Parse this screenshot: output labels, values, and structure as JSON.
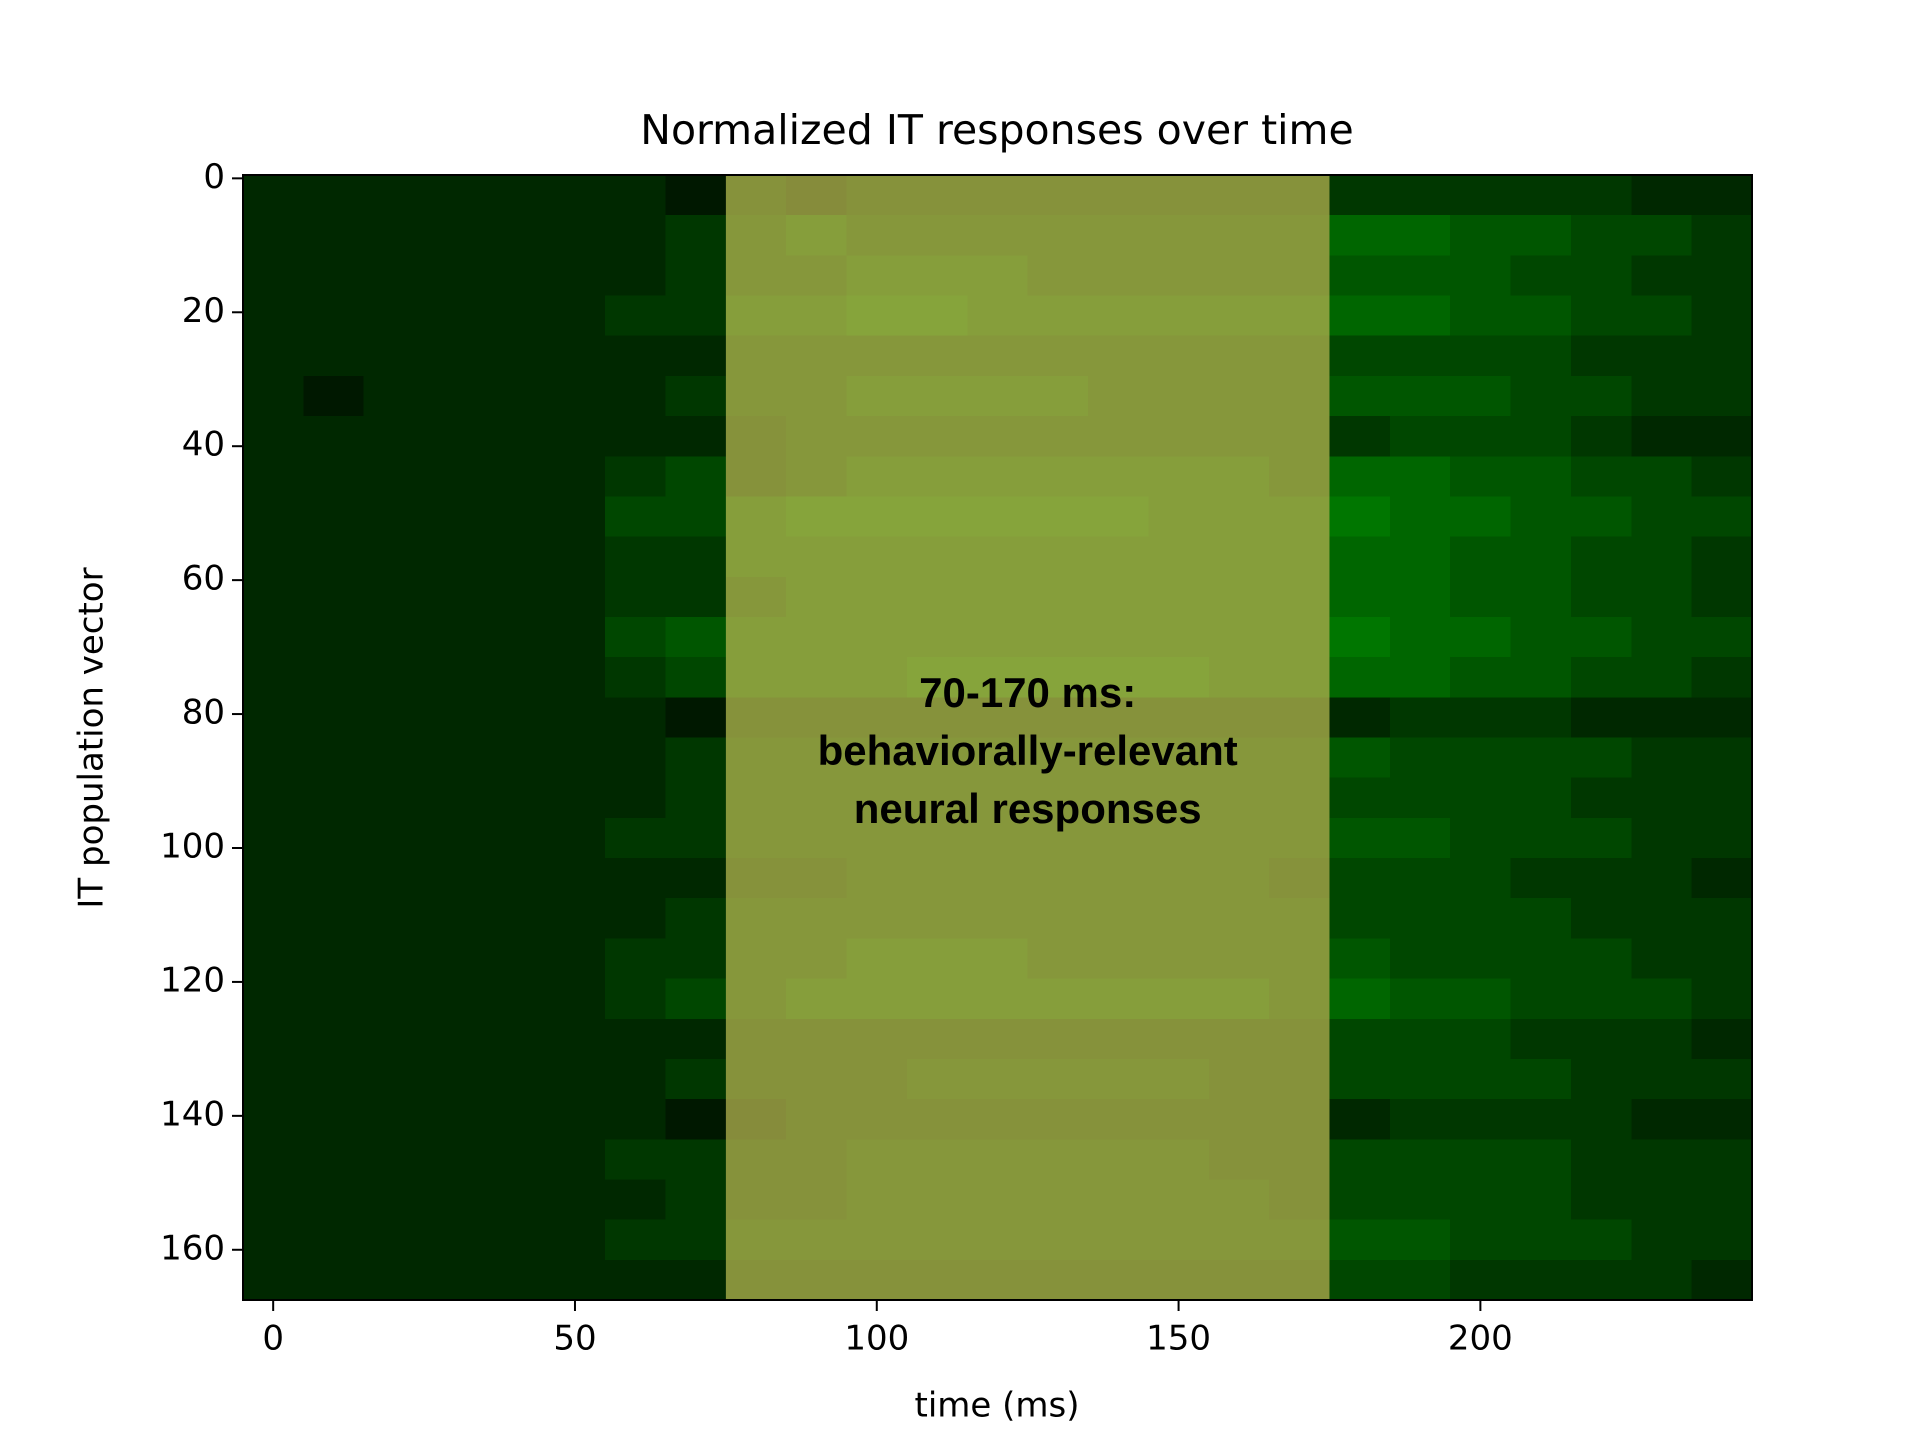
{
  "chart_data": {
    "type": "heatmap",
    "title": "Normalized IT responses over time",
    "xlabel": "time (ms)",
    "ylabel": "IT population vector",
    "x": [
      0,
      10,
      20,
      30,
      40,
      50,
      60,
      70,
      80,
      90,
      100,
      110,
      120,
      130,
      140,
      150,
      160,
      170,
      180,
      190,
      200,
      210,
      220,
      230,
      240
    ],
    "y": [
      2.5,
      8.5,
      14.5,
      20.5,
      26.5,
      32.5,
      38.5,
      44.5,
      50.5,
      56.5,
      62.5,
      68.5,
      74.5,
      80.5,
      86.5,
      92.5,
      98.5,
      104.5,
      110.5,
      116.5,
      122.5,
      128.5,
      134.5,
      140.5,
      146.5,
      152.5,
      158.5,
      164.5
    ],
    "values": [
      [
        0.1,
        0.1,
        0.1,
        0.1,
        0.1,
        0.1,
        0.1,
        0.0,
        0.3,
        0.2,
        0.3,
        0.3,
        0.3,
        0.3,
        0.3,
        0.3,
        0.3,
        0.3,
        0.2,
        0.2,
        0.2,
        0.2,
        0.2,
        0.1,
        0.1
      ],
      [
        0.1,
        0.1,
        0.1,
        0.1,
        0.1,
        0.1,
        0.1,
        0.2,
        0.4,
        0.5,
        0.4,
        0.4,
        0.4,
        0.4,
        0.4,
        0.4,
        0.4,
        0.4,
        0.5,
        0.5,
        0.4,
        0.4,
        0.3,
        0.3,
        0.2
      ],
      [
        0.1,
        0.1,
        0.1,
        0.1,
        0.1,
        0.1,
        0.1,
        0.2,
        0.4,
        0.4,
        0.5,
        0.5,
        0.5,
        0.4,
        0.4,
        0.4,
        0.4,
        0.4,
        0.4,
        0.4,
        0.4,
        0.3,
        0.3,
        0.2,
        0.2
      ],
      [
        0.1,
        0.1,
        0.1,
        0.1,
        0.1,
        0.1,
        0.2,
        0.2,
        0.5,
        0.5,
        0.6,
        0.6,
        0.5,
        0.5,
        0.5,
        0.5,
        0.5,
        0.5,
        0.5,
        0.5,
        0.4,
        0.4,
        0.3,
        0.3,
        0.2
      ],
      [
        0.1,
        0.1,
        0.1,
        0.1,
        0.1,
        0.1,
        0.1,
        0.1,
        0.4,
        0.4,
        0.4,
        0.4,
        0.4,
        0.4,
        0.4,
        0.4,
        0.4,
        0.4,
        0.3,
        0.3,
        0.3,
        0.3,
        0.2,
        0.2,
        0.2
      ],
      [
        0.1,
        0.0,
        0.1,
        0.1,
        0.1,
        0.1,
        0.1,
        0.2,
        0.4,
        0.4,
        0.5,
        0.5,
        0.5,
        0.5,
        0.4,
        0.4,
        0.4,
        0.4,
        0.4,
        0.4,
        0.4,
        0.3,
        0.3,
        0.2,
        0.2
      ],
      [
        0.1,
        0.1,
        0.1,
        0.1,
        0.1,
        0.1,
        0.1,
        0.1,
        0.3,
        0.4,
        0.4,
        0.4,
        0.4,
        0.4,
        0.4,
        0.4,
        0.4,
        0.4,
        0.2,
        0.3,
        0.3,
        0.3,
        0.2,
        0.1,
        0.1
      ],
      [
        0.1,
        0.1,
        0.1,
        0.1,
        0.1,
        0.1,
        0.2,
        0.3,
        0.3,
        0.4,
        0.5,
        0.5,
        0.5,
        0.5,
        0.5,
        0.5,
        0.5,
        0.4,
        0.5,
        0.5,
        0.4,
        0.4,
        0.3,
        0.3,
        0.2
      ],
      [
        0.1,
        0.1,
        0.1,
        0.1,
        0.1,
        0.1,
        0.3,
        0.3,
        0.5,
        0.6,
        0.6,
        0.6,
        0.6,
        0.6,
        0.6,
        0.5,
        0.5,
        0.5,
        0.6,
        0.5,
        0.5,
        0.4,
        0.4,
        0.3,
        0.3
      ],
      [
        0.1,
        0.1,
        0.1,
        0.1,
        0.1,
        0.1,
        0.2,
        0.2,
        0.5,
        0.5,
        0.5,
        0.5,
        0.5,
        0.5,
        0.5,
        0.5,
        0.5,
        0.5,
        0.5,
        0.5,
        0.4,
        0.4,
        0.3,
        0.3,
        0.2
      ],
      [
        0.1,
        0.1,
        0.1,
        0.1,
        0.1,
        0.1,
        0.2,
        0.2,
        0.4,
        0.5,
        0.5,
        0.5,
        0.5,
        0.5,
        0.5,
        0.5,
        0.5,
        0.5,
        0.5,
        0.5,
        0.4,
        0.4,
        0.3,
        0.3,
        0.2
      ],
      [
        0.1,
        0.1,
        0.1,
        0.1,
        0.1,
        0.1,
        0.3,
        0.4,
        0.5,
        0.5,
        0.5,
        0.5,
        0.5,
        0.5,
        0.5,
        0.5,
        0.5,
        0.5,
        0.6,
        0.5,
        0.5,
        0.4,
        0.4,
        0.3,
        0.3
      ],
      [
        0.1,
        0.1,
        0.1,
        0.1,
        0.1,
        0.1,
        0.2,
        0.3,
        0.5,
        0.5,
        0.5,
        0.6,
        0.6,
        0.6,
        0.6,
        0.6,
        0.5,
        0.5,
        0.5,
        0.5,
        0.4,
        0.4,
        0.3,
        0.3,
        0.2
      ],
      [
        0.1,
        0.1,
        0.1,
        0.1,
        0.1,
        0.1,
        0.1,
        0.0,
        0.3,
        0.3,
        0.3,
        0.3,
        0.3,
        0.3,
        0.3,
        0.3,
        0.3,
        0.3,
        0.1,
        0.2,
        0.2,
        0.2,
        0.1,
        0.1,
        0.1
      ],
      [
        0.1,
        0.1,
        0.1,
        0.1,
        0.1,
        0.1,
        0.1,
        0.2,
        0.4,
        0.4,
        0.4,
        0.4,
        0.4,
        0.4,
        0.4,
        0.4,
        0.4,
        0.4,
        0.4,
        0.3,
        0.3,
        0.3,
        0.3,
        0.2,
        0.2
      ],
      [
        0.1,
        0.1,
        0.1,
        0.1,
        0.1,
        0.1,
        0.1,
        0.2,
        0.4,
        0.4,
        0.4,
        0.4,
        0.4,
        0.4,
        0.4,
        0.4,
        0.4,
        0.4,
        0.3,
        0.3,
        0.3,
        0.3,
        0.2,
        0.2,
        0.2
      ],
      [
        0.1,
        0.1,
        0.1,
        0.1,
        0.1,
        0.1,
        0.2,
        0.2,
        0.4,
        0.4,
        0.4,
        0.4,
        0.4,
        0.4,
        0.4,
        0.4,
        0.4,
        0.4,
        0.4,
        0.4,
        0.3,
        0.3,
        0.3,
        0.2,
        0.2
      ],
      [
        0.1,
        0.1,
        0.1,
        0.1,
        0.1,
        0.1,
        0.1,
        0.1,
        0.3,
        0.3,
        0.4,
        0.4,
        0.4,
        0.4,
        0.4,
        0.4,
        0.4,
        0.3,
        0.3,
        0.3,
        0.3,
        0.2,
        0.2,
        0.2,
        0.1
      ],
      [
        0.1,
        0.1,
        0.1,
        0.1,
        0.1,
        0.1,
        0.1,
        0.2,
        0.4,
        0.4,
        0.4,
        0.4,
        0.4,
        0.4,
        0.4,
        0.4,
        0.4,
        0.4,
        0.3,
        0.3,
        0.3,
        0.3,
        0.2,
        0.2,
        0.2
      ],
      [
        0.1,
        0.1,
        0.1,
        0.1,
        0.1,
        0.1,
        0.2,
        0.2,
        0.4,
        0.4,
        0.5,
        0.5,
        0.5,
        0.4,
        0.4,
        0.4,
        0.4,
        0.4,
        0.4,
        0.3,
        0.3,
        0.3,
        0.3,
        0.2,
        0.2
      ],
      [
        0.1,
        0.1,
        0.1,
        0.1,
        0.1,
        0.1,
        0.2,
        0.3,
        0.4,
        0.5,
        0.5,
        0.5,
        0.5,
        0.5,
        0.5,
        0.5,
        0.5,
        0.4,
        0.5,
        0.4,
        0.4,
        0.3,
        0.3,
        0.3,
        0.2
      ],
      [
        0.1,
        0.1,
        0.1,
        0.1,
        0.1,
        0.1,
        0.1,
        0.1,
        0.3,
        0.3,
        0.3,
        0.3,
        0.3,
        0.3,
        0.3,
        0.3,
        0.3,
        0.3,
        0.3,
        0.3,
        0.3,
        0.2,
        0.2,
        0.2,
        0.1
      ],
      [
        0.1,
        0.1,
        0.1,
        0.1,
        0.1,
        0.1,
        0.1,
        0.2,
        0.3,
        0.3,
        0.3,
        0.4,
        0.4,
        0.4,
        0.4,
        0.4,
        0.3,
        0.3,
        0.3,
        0.3,
        0.3,
        0.3,
        0.2,
        0.2,
        0.2
      ],
      [
        0.1,
        0.1,
        0.1,
        0.1,
        0.1,
        0.1,
        0.1,
        0.0,
        0.2,
        0.3,
        0.3,
        0.3,
        0.3,
        0.3,
        0.3,
        0.3,
        0.3,
        0.3,
        0.1,
        0.2,
        0.2,
        0.2,
        0.2,
        0.1,
        0.1
      ],
      [
        0.1,
        0.1,
        0.1,
        0.1,
        0.1,
        0.1,
        0.2,
        0.2,
        0.3,
        0.3,
        0.4,
        0.4,
        0.4,
        0.4,
        0.4,
        0.4,
        0.3,
        0.3,
        0.3,
        0.3,
        0.3,
        0.3,
        0.2,
        0.2,
        0.2
      ],
      [
        0.1,
        0.1,
        0.1,
        0.1,
        0.1,
        0.1,
        0.1,
        0.2,
        0.3,
        0.3,
        0.4,
        0.4,
        0.4,
        0.4,
        0.4,
        0.4,
        0.4,
        0.3,
        0.3,
        0.3,
        0.3,
        0.3,
        0.2,
        0.2,
        0.2
      ],
      [
        0.1,
        0.1,
        0.1,
        0.1,
        0.1,
        0.1,
        0.2,
        0.2,
        0.4,
        0.4,
        0.4,
        0.4,
        0.4,
        0.4,
        0.4,
        0.4,
        0.4,
        0.4,
        0.4,
        0.4,
        0.3,
        0.3,
        0.3,
        0.2,
        0.2
      ],
      [
        0.1,
        0.1,
        0.1,
        0.1,
        0.1,
        0.1,
        0.1,
        0.1,
        0.3,
        0.3,
        0.3,
        0.3,
        0.3,
        0.3,
        0.3,
        0.3,
        0.3,
        0.3,
        0.3,
        0.3,
        0.2,
        0.2,
        0.2,
        0.2,
        0.1
      ]
    ],
    "colorscale": [
      "#001800",
      "#00b400"
    ],
    "vmin": 0,
    "vmax": 1,
    "xlim": [
      -5,
      245
    ],
    "ylim": [
      167.5,
      -0.5
    ],
    "xticks": [
      0,
      50,
      100,
      150,
      200
    ],
    "yticks": [
      0,
      20,
      40,
      60,
      80,
      100,
      120,
      140,
      160
    ],
    "highlight": {
      "x": [
        75,
        175
      ],
      "color": "#d8c060",
      "opacity": 0.62
    },
    "annotation": {
      "text": "70-170 ms:\nbehaviorally-relevant\nneural responses",
      "x": 125,
      "y": 86
    }
  }
}
